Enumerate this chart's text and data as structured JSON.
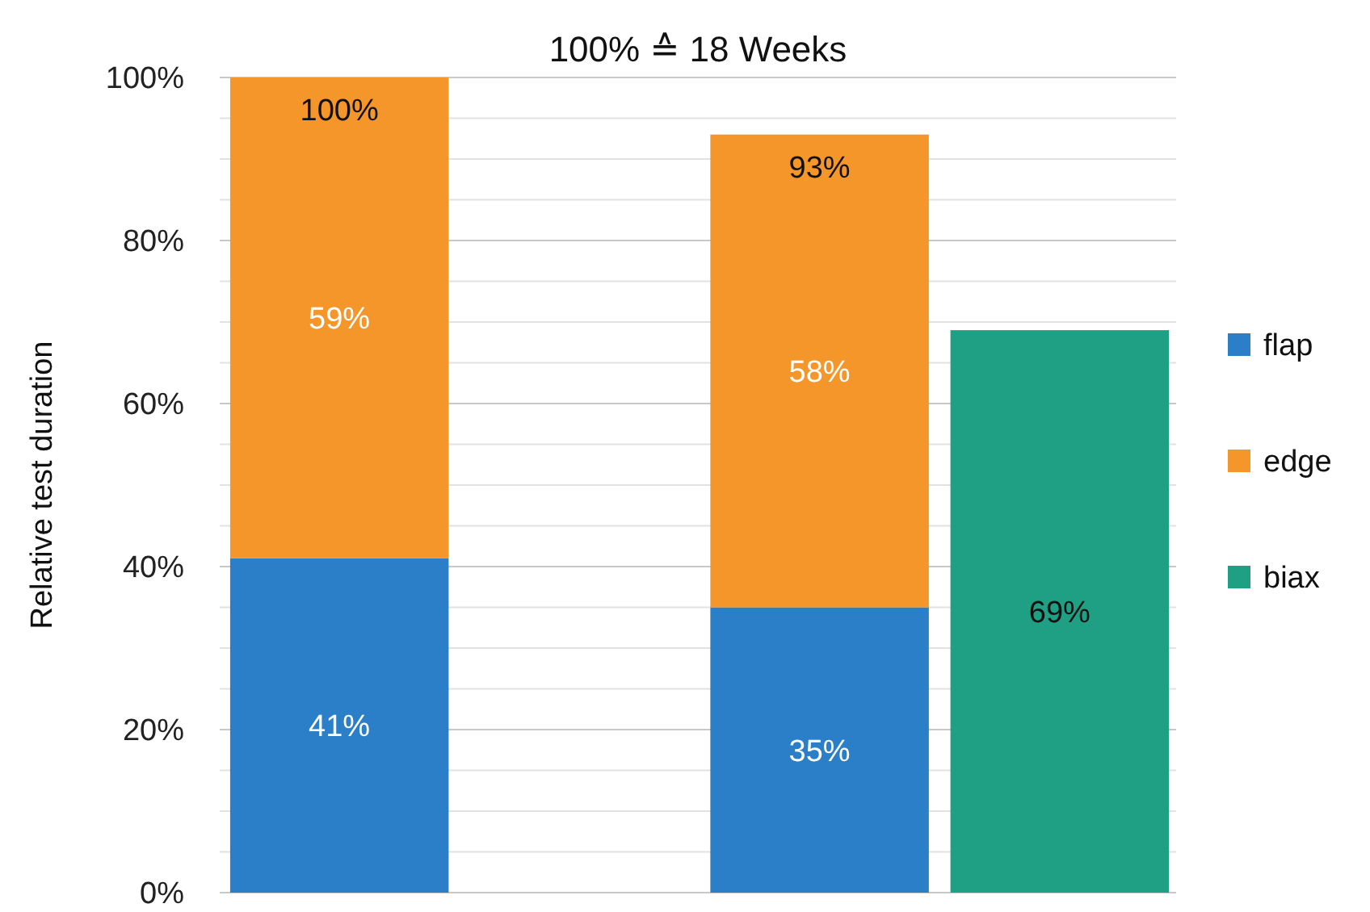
{
  "chart_data": {
    "type": "bar",
    "title": "100% ≙ 18 Weeks",
    "ylabel": "Relative test duration",
    "stacked": true,
    "categories": [
      null,
      null,
      null,
      null
    ],
    "series": [
      {
        "name": "flap",
        "color": "#2a7fc8",
        "values": [
          41,
          null,
          35,
          null
        ],
        "value_labels": [
          "41%",
          null,
          "35%",
          null
        ]
      },
      {
        "name": "edge",
        "color": "#f5962a",
        "values": [
          59,
          null,
          58,
          null
        ],
        "value_labels": [
          "59%",
          null,
          "58%",
          null
        ]
      },
      {
        "name": "biax",
        "color": "#1fa084",
        "values": [
          null,
          null,
          null,
          69
        ],
        "value_labels": [
          null,
          null,
          null,
          "69%"
        ]
      }
    ],
    "totals": [
      "100%",
      null,
      "93%",
      null
    ],
    "ylim": [
      0,
      100
    ],
    "yticks": [
      {
        "value": 0,
        "label": "0%"
      },
      {
        "value": 5,
        "label": null
      },
      {
        "value": 10,
        "label": null
      },
      {
        "value": 15,
        "label": null
      },
      {
        "value": 20,
        "label": "20%"
      },
      {
        "value": 25,
        "label": null
      },
      {
        "value": 30,
        "label": null
      },
      {
        "value": 35,
        "label": null
      },
      {
        "value": 40,
        "label": "40%"
      },
      {
        "value": 45,
        "label": null
      },
      {
        "value": 50,
        "label": null
      },
      {
        "value": 55,
        "label": null
      },
      {
        "value": 60,
        "label": "60%"
      },
      {
        "value": 65,
        "label": null
      },
      {
        "value": 70,
        "label": null
      },
      {
        "value": 75,
        "label": null
      },
      {
        "value": 80,
        "label": "80%"
      },
      {
        "value": 85,
        "label": null
      },
      {
        "value": 90,
        "label": null
      },
      {
        "value": 95,
        "label": null
      },
      {
        "value": 100,
        "label": "100%"
      }
    ],
    "grid": "y",
    "legend": "right"
  }
}
